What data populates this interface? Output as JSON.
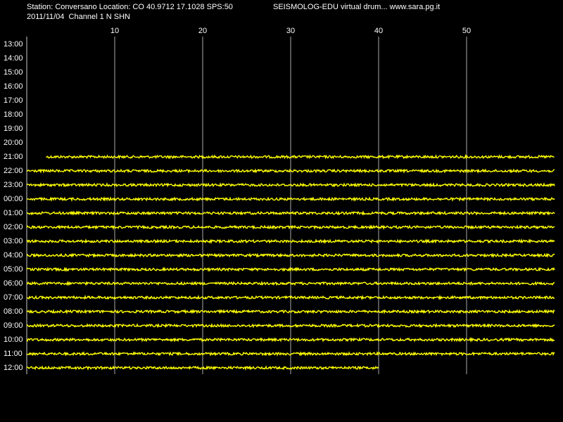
{
  "header": {
    "station": "Station: Conversano Location: CO 40.9712 17.1028 SPS:50",
    "program": "SEISMOLOG-EDU virtual drum... www.sara.pg.it",
    "channel": "2011/11/04  Channel 1 N SHN"
  },
  "axis": {
    "xlim": [
      0,
      60
    ],
    "xticks": [
      10,
      20,
      30,
      40,
      50
    ]
  },
  "rows": [
    {
      "label": "13:00"
    },
    {
      "label": "14:00"
    },
    {
      "label": "15:00"
    },
    {
      "label": "16:00"
    },
    {
      "label": "17:00"
    },
    {
      "label": "18:00"
    },
    {
      "label": "19:00"
    },
    {
      "label": "20:00"
    },
    {
      "label": "21:00",
      "start": 2.2,
      "end": 60
    },
    {
      "label": "22:00",
      "start": 0,
      "end": 60
    },
    {
      "label": "23:00",
      "start": 0,
      "end": 60
    },
    {
      "label": "00:00",
      "start": 0,
      "end": 60
    },
    {
      "label": "01:00",
      "start": 0,
      "end": 60
    },
    {
      "label": "02:00",
      "start": 0,
      "end": 60
    },
    {
      "label": "03:00",
      "start": 0,
      "end": 60
    },
    {
      "label": "04:00",
      "start": 0,
      "end": 60
    },
    {
      "label": "05:00",
      "start": 0,
      "end": 60
    },
    {
      "label": "06:00",
      "start": 0,
      "end": 60
    },
    {
      "label": "07:00",
      "start": 0,
      "end": 60
    },
    {
      "label": "08:00",
      "start": 0,
      "end": 60
    },
    {
      "label": "09:00",
      "start": 0,
      "end": 60
    },
    {
      "label": "10:00",
      "start": 0,
      "end": 60
    },
    {
      "label": "11:00",
      "start": 0,
      "end": 60
    },
    {
      "label": "12:00",
      "start": 0,
      "end": 40
    }
  ]
}
